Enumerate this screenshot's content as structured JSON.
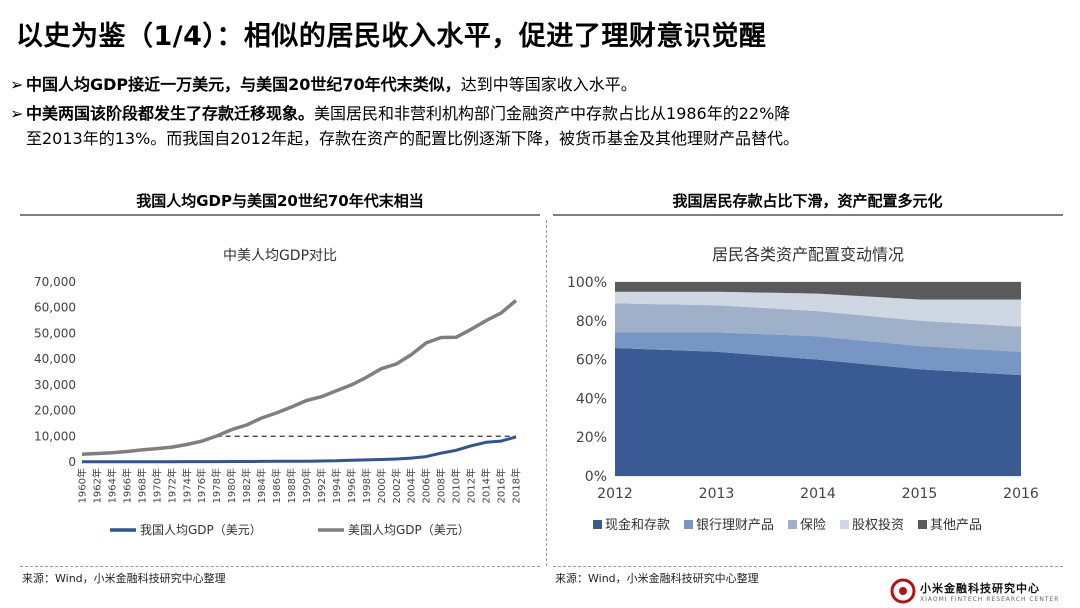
{
  "title": "以史为鉴（1/4）：相似的居民收入水平，促进了理财意识觉醒",
  "bullets": [
    {
      "arrow": "➢",
      "bold": "中国人均GDP接近一万美元，与美国20世纪70年代末类似，",
      "text": "达到中等国家收入水平。",
      "cont": ""
    },
    {
      "arrow": "➢",
      "bold": "中美两国该阶段都发生了存款迁移现象。",
      "text": "美国居民和非营利机构部门金融资产中存款占比从1986年的22%降",
      "cont": "至2013年的13%。而我国自2012年起，存款在资产的配置比例逐渐下降，被货币基金及其他理财产品替代。"
    }
  ],
  "left_panel": {
    "heading": "我国人均GDP与美国20世纪70年代末相当",
    "source": "来源：Wind，小米金融科技研究中心整理"
  },
  "right_panel": {
    "heading": "我国居民存款占比下滑，资产配置多元化",
    "source": "来源：Wind，小米金融科技研究中心整理"
  },
  "logo": {
    "name": "小米金融科技研究中心",
    "sub": "XIAOMI FINTECH RESEARCH CENTER"
  },
  "chart_data": [
    {
      "type": "line",
      "title": "中美人均GDP对比",
      "ylim": [
        0,
        70000
      ],
      "yticks": [
        "0",
        "10,000",
        "20,000",
        "30,000",
        "40,000",
        "50,000",
        "60,000",
        "70,000"
      ],
      "categories": [
        "1960年",
        "1962年",
        "1964年",
        "1966年",
        "1968年",
        "1970年",
        "1972年",
        "1974年",
        "1976年",
        "1978年",
        "1980年",
        "1982年",
        "1984年",
        "1986年",
        "1988年",
        "1990年",
        "1992年",
        "1994年",
        "1996年",
        "1998年",
        "2000年",
        "2002年",
        "2004年",
        "2006年",
        "2008年",
        "2010年",
        "2012年",
        "2014年",
        "2016年",
        "2018年"
      ],
      "series": [
        {
          "name": "我国人均GDP（美元）",
          "color": "#2e5597",
          "values": [
            90,
            70,
            85,
            100,
            90,
            110,
            130,
            160,
            165,
            155,
            195,
            200,
            250,
            280,
            280,
            320,
            370,
            470,
            710,
            830,
            960,
            1150,
            1510,
            2100,
            3470,
            4550,
            6300,
            7650,
            8120,
            9770
          ]
        },
        {
          "name": "美国人均GDP（美元）",
          "color": "#7f7f7f",
          "values": [
            3000,
            3300,
            3600,
            4100,
            4700,
            5200,
            5800,
            6800,
            8100,
            10100,
            12600,
            14400,
            17100,
            19100,
            21400,
            23900,
            25400,
            27700,
            30000,
            32900,
            36300,
            38100,
            41700,
            46300,
            48400,
            48500,
            51600,
            55000,
            57900,
            62800
          ]
        }
      ],
      "annotation": {
        "type": "dashed-reference",
        "value": 10000,
        "from": "1978年",
        "to": "2018年"
      }
    },
    {
      "type": "area",
      "title": "居民各类资产配置变动情况",
      "ylim": [
        0,
        100
      ],
      "yticks": [
        "0%",
        "20%",
        "40%",
        "60%",
        "80%",
        "100%"
      ],
      "x": [
        "2012",
        "2013",
        "2014",
        "2015",
        "2016"
      ],
      "stacking": "percent",
      "series": [
        {
          "name": "现金和存款",
          "color": "#3a5a94",
          "values": [
            66,
            64,
            60,
            55,
            52
          ]
        },
        {
          "name": "银行理财产品",
          "color": "#7896c4",
          "values": [
            8,
            10,
            12,
            12,
            12
          ]
        },
        {
          "name": "保险",
          "color": "#9fb0c9",
          "values": [
            15,
            14,
            13,
            13,
            13
          ]
        },
        {
          "name": "股权投资",
          "color": "#cfd7e3",
          "values": [
            6,
            7,
            9,
            11,
            14
          ]
        },
        {
          "name": "其他产品",
          "color": "#5a5a5a",
          "values": [
            5,
            5,
            6,
            9,
            9
          ]
        }
      ]
    }
  ]
}
